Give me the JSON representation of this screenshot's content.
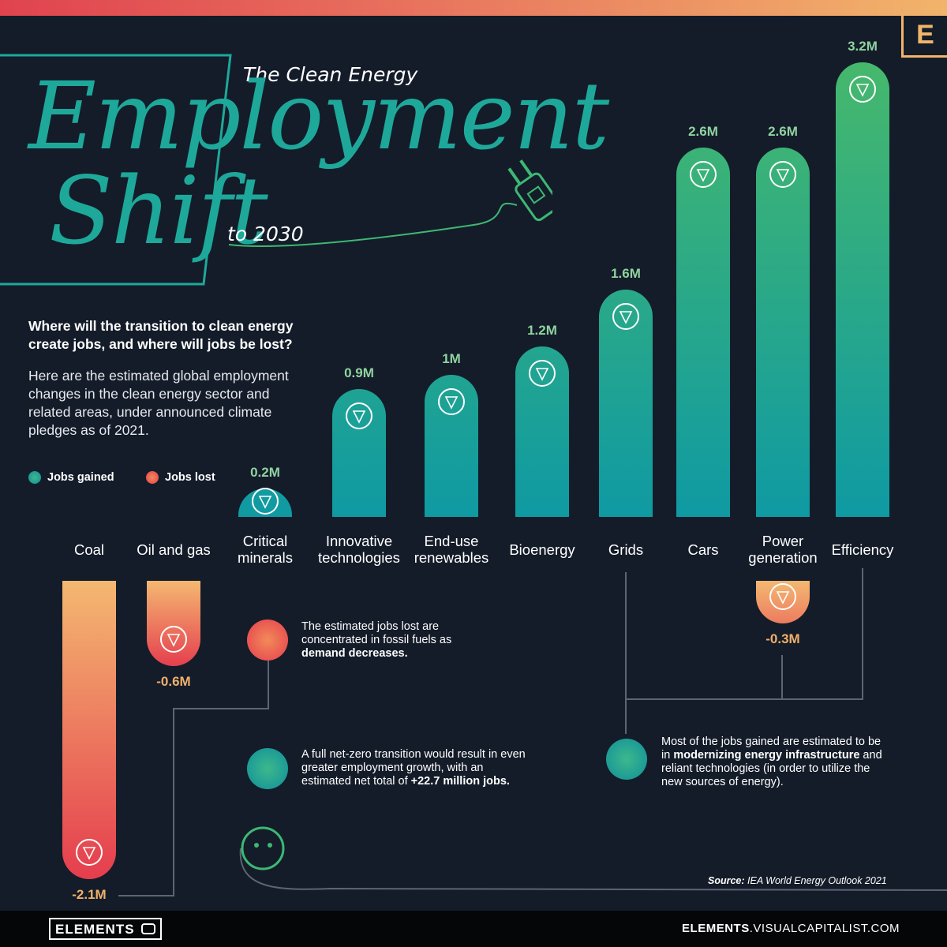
{
  "brand": {
    "corner_logo": "E",
    "footer_logo": "ELEMENTS",
    "site_bold": "ELEMENTS",
    "site_rest": ".VISUALCAPITALIST.COM"
  },
  "title": {
    "pre": "The Clean Energy",
    "line1": "Employment",
    "line2": "Shift",
    "post": "to 2030"
  },
  "intro": {
    "question": "Where will the transition to clean energy create jobs, and where will jobs be lost?",
    "text": "Here are the estimated global employment changes in the clean energy sector and related areas, under announced climate pledges as of 2021."
  },
  "legend": {
    "gained": "Jobs gained",
    "lost": "Jobs lost"
  },
  "colors": {
    "gain_top": "#46b86c",
    "gain_bottom": "#0f9aa3",
    "loss_top": "#f4b871",
    "loss_bottom": "#e53e4e",
    "value_gain": "#8fd3a0",
    "value_loss": "#f0b06a",
    "background": "#141c29",
    "connector": "#5d6472"
  },
  "chart_data": {
    "type": "bar",
    "title": "The Clean Energy Employment Shift to 2030",
    "unit": "million jobs",
    "categories": [
      "Coal",
      "Oil and gas",
      "Critical minerals",
      "Innovative technologies",
      "End-use renewables",
      "Bioenergy",
      "Grids",
      "Cars",
      "Power generation",
      "Efficiency"
    ],
    "series": [
      {
        "name": "Jobs gained",
        "values": [
          0,
          0,
          0.2,
          0.9,
          1.0,
          1.2,
          1.6,
          2.6,
          2.6,
          3.2
        ],
        "labels": [
          "",
          "",
          "0.2M",
          "0.9M",
          "1M",
          "1.2M",
          "1.6M",
          "2.6M",
          "2.6M",
          "3.2M"
        ]
      },
      {
        "name": "Jobs lost",
        "values": [
          -2.1,
          -0.6,
          0,
          0,
          0,
          0,
          0,
          0,
          -0.3,
          0
        ],
        "labels": [
          "-2.1M",
          "-0.6M",
          "",
          "",
          "",
          "",
          "",
          "",
          "-0.3M",
          ""
        ]
      }
    ],
    "icons": [
      "coal-icon",
      "oil-drop-icon",
      "mineral-icon",
      "lightbulb-icon",
      "recycle-icon",
      "flower-icon",
      "grid-icon",
      "wheel-icon",
      "lightning-icon",
      "clock-icon"
    ]
  },
  "notes": {
    "fossil": {
      "pre": "The estimated jobs lost are concentrated in fossil fuels as ",
      "bold": "demand decreases."
    },
    "netzero": {
      "pre": "A full net-zero transition would result in even greater employment growth, with an estimated net total of ",
      "bold": "+22.7 million jobs."
    },
    "infrastructure": {
      "pre": "Most of the jobs gained are estimated to be in ",
      "bold": "modernizing energy infrastructure",
      "post": " and reliant technologies (in order to utilize the new sources of energy)."
    }
  },
  "source": {
    "label": "Source:",
    "text": " IEA World Energy Outlook 2021"
  }
}
